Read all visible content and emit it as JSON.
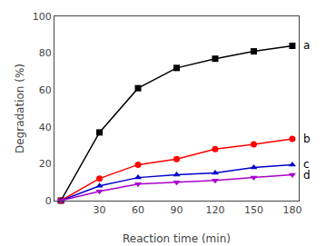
{
  "chart_data": {
    "type": "line",
    "x": [
      0,
      30,
      60,
      90,
      120,
      150,
      180
    ],
    "series": [
      {
        "name": "a",
        "values": [
          0,
          37,
          61,
          72,
          77,
          81,
          84
        ],
        "marker": "square",
        "color": "#000000"
      },
      {
        "name": "b",
        "values": [
          0,
          12,
          19.5,
          22.5,
          28,
          30.5,
          33.5
        ],
        "marker": "circle",
        "color": "#ff0000"
      },
      {
        "name": "c",
        "values": [
          0,
          8,
          12.5,
          14,
          15,
          18,
          19.5
        ],
        "marker": "triangle-up",
        "color": "#0000cc"
      },
      {
        "name": "d",
        "values": [
          0,
          5,
          9,
          10,
          11,
          12.5,
          14
        ],
        "marker": "triangle-down",
        "color": "#aa00cc"
      }
    ],
    "xlabel": "Reaction time (min)",
    "ylabel": "Degradation (%)",
    "xlim": [
      -5,
      185
    ],
    "ylim": [
      0,
      100
    ],
    "xticks": [
      30,
      60,
      90,
      120,
      150,
      180
    ],
    "yticks": [
      0,
      20,
      40,
      60,
      80,
      100
    ],
    "grid": false
  }
}
